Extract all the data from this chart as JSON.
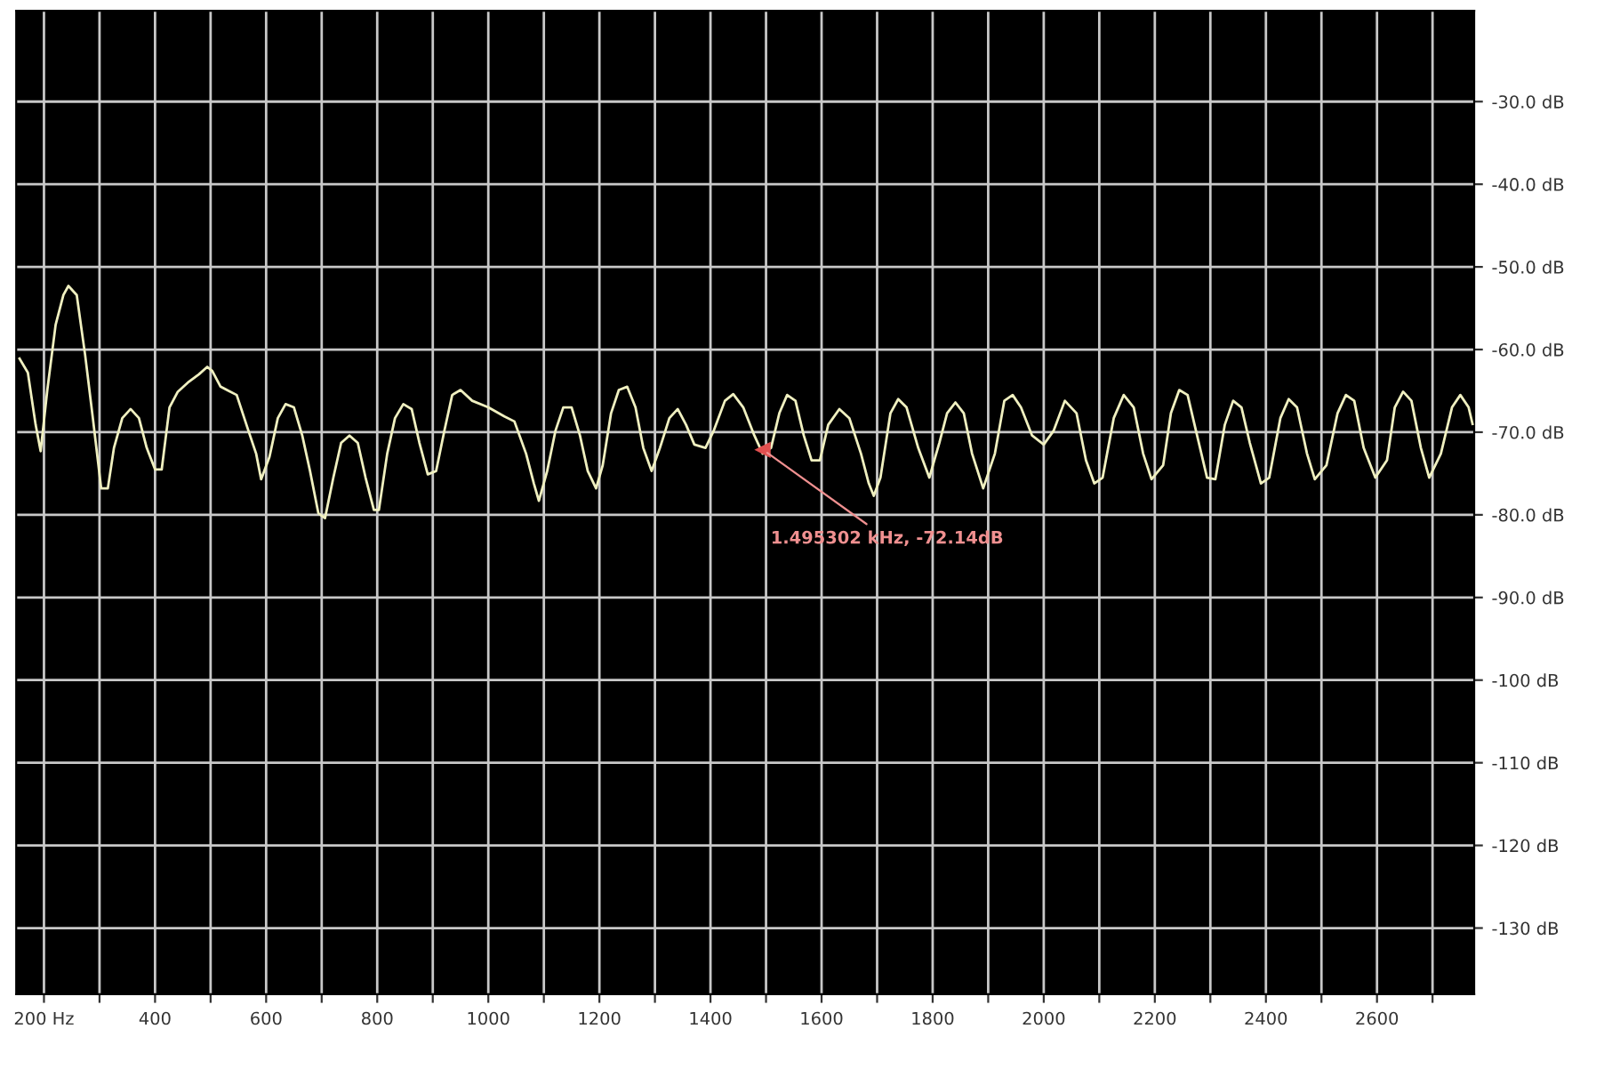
{
  "chart_data": {
    "type": "line",
    "xlim": [
      150,
      2775
    ],
    "ylim": [
      -138,
      -19
    ],
    "xticks": [
      {
        "value": 200,
        "label": "200 Hz"
      },
      {
        "value": 300,
        "label": null
      },
      400,
      {
        "value": 500,
        "label": null
      },
      600,
      {
        "value": 700,
        "label": null
      },
      800,
      {
        "value": 900,
        "label": null
      },
      1000,
      {
        "value": 1100,
        "label": null
      },
      1200,
      {
        "value": 1300,
        "label": null
      },
      1400,
      {
        "value": 1500,
        "label": null
      },
      1600,
      {
        "value": 1700,
        "label": null
      },
      1800,
      {
        "value": 1900,
        "label": null
      },
      2000,
      {
        "value": 2100,
        "label": null
      },
      2200,
      {
        "value": 2300,
        "label": null
      },
      2400,
      {
        "value": 2500,
        "label": null
      },
      2600,
      {
        "value": 2700,
        "label": null
      }
    ],
    "yticks": [
      {
        "value": -30,
        "label": "-30.0 dB"
      },
      {
        "value": -40,
        "label": "-40.0 dB"
      },
      {
        "value": -50,
        "label": "-50.0 dB"
      },
      {
        "value": -60,
        "label": "-60.0 dB"
      },
      {
        "value": -70,
        "label": "-70.0 dB"
      },
      {
        "value": -80,
        "label": "-80.0 dB"
      },
      {
        "value": -90,
        "label": "-90.0 dB"
      },
      {
        "value": -100,
        "label": "-100 dB"
      },
      {
        "value": -110,
        "label": "-110 dB"
      },
      {
        "value": -120,
        "label": "-120 dB"
      },
      {
        "value": -130,
        "label": "-130 dB"
      }
    ],
    "grid": true,
    "line_style": "solid",
    "marker": "none",
    "annotations": [
      {
        "text": "1.495302 kHz, -72.14dB",
        "x": 1495,
        "y": -72.14
      }
    ],
    "series": [
      {
        "color": "#f0f0c0",
        "x": [
          156,
          171,
          185,
          194,
          206,
          221,
          235,
          244,
          259,
          274,
          288,
          303,
          315,
          326,
          341,
          356,
          371,
          385,
          400,
          412,
          426,
          441,
          459,
          479,
          494,
          503,
          518,
          547,
          568,
          582,
          591,
          606,
          621,
          635,
          650,
          665,
          679,
          694,
          706,
          721,
          735,
          750,
          765,
          779,
          794,
          803,
          818,
          832,
          847,
          862,
          876,
          891,
          906,
          921,
          935,
          950,
          971,
          1000,
          1029,
          1047,
          1068,
          1082,
          1091,
          1106,
          1121,
          1135,
          1150,
          1165,
          1179,
          1194,
          1206,
          1221,
          1235,
          1250,
          1265,
          1279,
          1294,
          1309,
          1326,
          1341,
          1356,
          1371,
          1391,
          1406,
          1426,
          1441,
          1459,
          1479,
          1494,
          1509,
          1524,
          1538,
          1553,
          1568,
          1582,
          1597,
          1612,
          1632,
          1650,
          1671,
          1685,
          1694,
          1706,
          1724,
          1738,
          1753,
          1774,
          1794,
          1812,
          1826,
          1841,
          1856,
          1871,
          1891,
          1912,
          1929,
          1944,
          1959,
          1979,
          2000,
          2018,
          2038,
          2059,
          2076,
          2091,
          2106,
          2126,
          2144,
          2162,
          2179,
          2194,
          2215,
          2229,
          2244,
          2259,
          2274,
          2294,
          2309,
          2326,
          2341,
          2356,
          2371,
          2391,
          2406,
          2426,
          2441,
          2456,
          2474,
          2488,
          2509,
          2529,
          2544,
          2559,
          2576,
          2597,
          2618,
          2632,
          2647,
          2662,
          2679,
          2694,
          2715,
          2735,
          2750,
          2765,
          2772
        ],
        "values": [
          -61.1,
          -62.8,
          -69.1,
          -72.3,
          -64.9,
          -57.0,
          -53.4,
          -52.3,
          -53.4,
          -60.6,
          -68.3,
          -76.8,
          -76.8,
          -71.9,
          -68.3,
          -67.2,
          -68.3,
          -71.9,
          -74.5,
          -74.5,
          -67.0,
          -65.1,
          -64.0,
          -63.0,
          -62.1,
          -62.6,
          -64.5,
          -65.5,
          -69.8,
          -72.6,
          -75.7,
          -73.0,
          -68.3,
          -66.6,
          -67.0,
          -70.4,
          -74.7,
          -79.8,
          -80.4,
          -75.5,
          -71.3,
          -70.4,
          -71.3,
          -75.5,
          -79.4,
          -79.4,
          -72.6,
          -68.3,
          -66.6,
          -67.2,
          -71.3,
          -75.1,
          -74.7,
          -69.8,
          -65.5,
          -64.9,
          -66.2,
          -67.0,
          -68.1,
          -68.7,
          -72.6,
          -76.2,
          -78.3,
          -74.7,
          -69.8,
          -67.0,
          -67.0,
          -70.4,
          -74.7,
          -76.8,
          -74.0,
          -67.7,
          -64.9,
          -64.5,
          -67.0,
          -71.9,
          -74.7,
          -71.9,
          -68.3,
          -67.2,
          -69.1,
          -71.5,
          -71.9,
          -69.8,
          -66.2,
          -65.4,
          -67.0,
          -70.4,
          -72.6,
          -71.9,
          -67.7,
          -65.5,
          -66.2,
          -70.4,
          -73.4,
          -73.4,
          -69.1,
          -67.2,
          -68.3,
          -72.6,
          -76.2,
          -77.7,
          -75.5,
          -67.7,
          -66.0,
          -67.0,
          -71.9,
          -75.5,
          -71.3,
          -67.7,
          -66.4,
          -67.7,
          -72.6,
          -76.8,
          -72.6,
          -66.2,
          -65.5,
          -67.0,
          -70.4,
          -71.5,
          -69.8,
          -66.2,
          -67.7,
          -73.4,
          -76.2,
          -75.5,
          -68.3,
          -65.5,
          -67.0,
          -72.6,
          -75.7,
          -74.0,
          -67.7,
          -64.9,
          -65.5,
          -69.8,
          -75.5,
          -75.7,
          -69.1,
          -66.2,
          -67.0,
          -71.3,
          -76.2,
          -75.5,
          -68.3,
          -66.0,
          -67.0,
          -72.6,
          -75.7,
          -74.0,
          -67.7,
          -65.5,
          -66.2,
          -71.9,
          -75.5,
          -73.4,
          -67.0,
          -65.1,
          -66.2,
          -71.9,
          -75.5,
          -72.6,
          -67.0,
          -65.5,
          -67.0,
          -69.0
        ]
      }
    ]
  }
}
